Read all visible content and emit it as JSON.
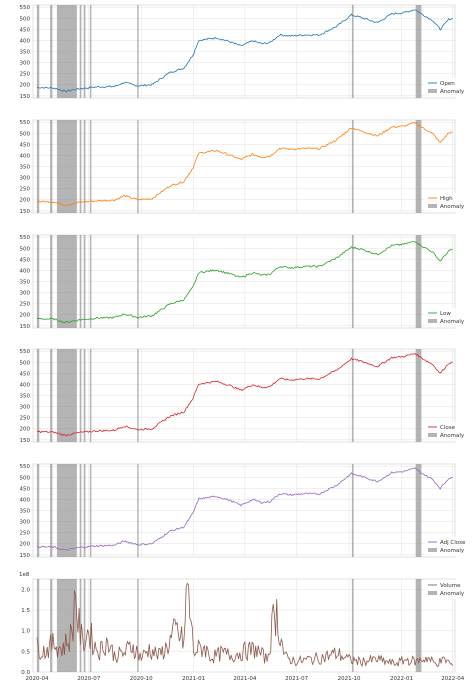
{
  "chart_data": {
    "type": "line",
    "shared_x": {
      "range": [
        "2020-03-25",
        "2022-04-05"
      ],
      "ticks": [
        "2020-04",
        "2020-07",
        "2020-10",
        "2021-01",
        "2021-04",
        "2021-07",
        "2021-10",
        "2022-01",
        "2022-04"
      ]
    },
    "anomaly_bands": [
      [
        "2020-04-01",
        "2020-04-05"
      ],
      [
        "2020-04-24",
        "2020-04-28"
      ],
      [
        "2020-05-06",
        "2020-06-10"
      ],
      [
        "2020-06-15",
        "2020-06-18"
      ],
      [
        "2020-06-22",
        "2020-06-25"
      ],
      [
        "2020-07-03",
        "2020-07-05"
      ],
      [
        "2020-09-24",
        "2020-09-26"
      ],
      [
        "2021-10-06",
        "2021-10-09"
      ],
      [
        "2022-01-26",
        "2022-02-05"
      ]
    ],
    "panels": [
      {
        "key": "open",
        "color": "#1f77b4",
        "ylim": [
          140,
          560
        ],
        "yticks": [
          150,
          200,
          250,
          300,
          350,
          400,
          450,
          500,
          550
        ],
        "legend": [
          "Open",
          "Anomaly"
        ],
        "series": [
          {
            "name": "Open",
            "x": [
              "2020-04-01",
              "2020-05-01",
              "2020-05-20",
              "2020-06-15",
              "2020-07-15",
              "2020-08-15",
              "2020-09-01",
              "2020-09-25",
              "2020-10-20",
              "2020-11-20",
              "2020-12-15",
              "2020-12-31",
              "2021-01-10",
              "2021-02-10",
              "2021-03-05",
              "2021-03-25",
              "2021-04-15",
              "2021-05-01",
              "2021-05-15",
              "2021-06-01",
              "2021-06-20",
              "2021-07-15",
              "2021-08-10",
              "2021-09-10",
              "2021-10-05",
              "2021-10-20",
              "2021-11-20",
              "2021-12-15",
              "2022-01-05",
              "2022-01-25",
              "2022-02-05",
              "2022-02-25",
              "2022-03-10",
              "2022-03-25",
              "2022-04-01"
            ],
            "y": [
              188,
              185,
              170,
              182,
              190,
              192,
              210,
              195,
              200,
              255,
              275,
              335,
              400,
              412,
              395,
              375,
              398,
              385,
              390,
              425,
              420,
              425,
              425,
              465,
              515,
              505,
              480,
              520,
              525,
              540,
              520,
              490,
              450,
              495,
              500
            ]
          }
        ]
      },
      {
        "key": "high",
        "color": "#ff7f0e",
        "ylim": [
          140,
          560
        ],
        "yticks": [
          150,
          200,
          250,
          300,
          350,
          400,
          450,
          500,
          550
        ],
        "legend": [
          "High",
          "Anomaly"
        ],
        "series": [
          {
            "name": "High",
            "x": [
              "2020-04-01",
              "2020-05-01",
              "2020-05-20",
              "2020-06-15",
              "2020-07-15",
              "2020-08-15",
              "2020-09-01",
              "2020-09-25",
              "2020-10-20",
              "2020-11-20",
              "2020-12-15",
              "2020-12-31",
              "2021-01-10",
              "2021-02-10",
              "2021-03-05",
              "2021-03-25",
              "2021-04-15",
              "2021-05-01",
              "2021-05-15",
              "2021-06-01",
              "2021-06-20",
              "2021-07-15",
              "2021-08-10",
              "2021-09-10",
              "2021-10-05",
              "2021-10-20",
              "2021-11-20",
              "2021-12-15",
              "2022-01-05",
              "2022-01-25",
              "2022-02-05",
              "2022-02-25",
              "2022-03-10",
              "2022-03-25",
              "2022-04-01"
            ],
            "y": [
              192,
              190,
              175,
              188,
              195,
              198,
              218,
              200,
              205,
              262,
              282,
              345,
              410,
              422,
              402,
              382,
              405,
              392,
              397,
              432,
              428,
              432,
              430,
              472,
              525,
              512,
              488,
              528,
              532,
              548,
              528,
              498,
              458,
              502,
              506
            ]
          }
        ]
      },
      {
        "key": "low",
        "color": "#2ca02c",
        "ylim": [
          140,
          560
        ],
        "yticks": [
          150,
          200,
          250,
          300,
          350,
          400,
          450,
          500,
          550
        ],
        "legend": [
          "Low",
          "Anomaly"
        ],
        "series": [
          {
            "name": "Low",
            "x": [
              "2020-04-01",
              "2020-05-01",
              "2020-05-20",
              "2020-06-15",
              "2020-07-15",
              "2020-08-15",
              "2020-09-01",
              "2020-09-25",
              "2020-10-20",
              "2020-11-20",
              "2020-12-15",
              "2020-12-31",
              "2021-01-10",
              "2021-02-10",
              "2021-03-05",
              "2021-03-25",
              "2021-04-15",
              "2021-05-01",
              "2021-05-15",
              "2021-06-01",
              "2021-06-20",
              "2021-07-15",
              "2021-08-10",
              "2021-09-10",
              "2021-10-05",
              "2021-10-20",
              "2021-11-20",
              "2021-12-15",
              "2022-01-05",
              "2022-01-25",
              "2022-02-05",
              "2022-02-25",
              "2022-03-10",
              "2022-03-25",
              "2022-04-01"
            ],
            "y": [
              182,
              180,
              165,
              177,
              185,
              187,
              203,
              188,
              195,
              248,
              268,
              325,
              390,
              402,
              385,
              368,
              390,
              378,
              383,
              418,
              412,
              418,
              418,
              458,
              505,
              498,
              472,
              512,
              518,
              532,
              512,
              482,
              442,
              488,
              494
            ]
          }
        ]
      },
      {
        "key": "close",
        "color": "#d62728",
        "ylim": [
          140,
          560
        ],
        "yticks": [
          150,
          200,
          250,
          300,
          350,
          400,
          450,
          500,
          550
        ],
        "legend": [
          "Close",
          "Anomaly"
        ],
        "series": [
          {
            "name": "Close",
            "x": [
              "2020-04-01",
              "2020-05-01",
              "2020-05-20",
              "2020-06-15",
              "2020-07-15",
              "2020-08-15",
              "2020-09-01",
              "2020-09-25",
              "2020-10-20",
              "2020-11-20",
              "2020-12-15",
              "2020-12-31",
              "2021-01-10",
              "2021-02-10",
              "2021-03-05",
              "2021-03-25",
              "2021-04-15",
              "2021-05-01",
              "2021-05-15",
              "2021-06-01",
              "2021-06-20",
              "2021-07-15",
              "2021-08-10",
              "2021-09-10",
              "2021-10-05",
              "2021-10-20",
              "2021-11-20",
              "2021-12-15",
              "2022-01-05",
              "2022-01-25",
              "2022-02-05",
              "2022-02-25",
              "2022-03-10",
              "2022-03-25",
              "2022-04-01"
            ],
            "y": [
              187,
              184,
              170,
              183,
              190,
              193,
              212,
              196,
              200,
              256,
              276,
              338,
              402,
              414,
              396,
              374,
              399,
              386,
              390,
              426,
              420,
              426,
              425,
              466,
              516,
              506,
              481,
              521,
              526,
              540,
              520,
              490,
              450,
              496,
              500
            ]
          }
        ]
      },
      {
        "key": "adj_close",
        "color": "#9467bd",
        "ylim": [
          140,
          560
        ],
        "yticks": [
          150,
          200,
          250,
          300,
          350,
          400,
          450,
          500,
          550
        ],
        "legend": [
          "Adj Close",
          "Anomaly"
        ],
        "series": [
          {
            "name": "Adj Close",
            "x": [
              "2020-04-01",
              "2020-05-01",
              "2020-05-20",
              "2020-06-15",
              "2020-07-15",
              "2020-08-15",
              "2020-09-01",
              "2020-09-25",
              "2020-10-20",
              "2020-11-20",
              "2020-12-15",
              "2020-12-31",
              "2021-01-10",
              "2021-02-10",
              "2021-03-05",
              "2021-03-25",
              "2021-04-15",
              "2021-05-01",
              "2021-05-15",
              "2021-06-01",
              "2021-06-20",
              "2021-07-15",
              "2021-08-10",
              "2021-09-10",
              "2021-10-05",
              "2021-10-20",
              "2021-11-20",
              "2021-12-15",
              "2022-01-05",
              "2022-01-25",
              "2022-02-05",
              "2022-02-25",
              "2022-03-10",
              "2022-03-25",
              "2022-04-01"
            ],
            "y": [
              187,
              184,
              170,
              183,
              190,
              193,
              212,
              196,
              200,
              256,
              276,
              338,
              402,
              414,
              396,
              374,
              399,
              386,
              390,
              426,
              420,
              426,
              425,
              466,
              516,
              506,
              481,
              521,
              526,
              540,
              520,
              490,
              450,
              496,
              500
            ]
          }
        ]
      },
      {
        "key": "volume",
        "color": "#8c564b",
        "ylim": [
          0,
          2.25
        ],
        "yticks": [
          "0.0",
          "0.5",
          "1.0",
          "1.5",
          "2.0"
        ],
        "ytick_values": [
          0,
          0.5,
          1.0,
          1.5,
          2.0
        ],
        "y_multiplier": "1e8",
        "legend": [
          "Volume",
          "Anomaly"
        ],
        "series": [
          {
            "name": "Volume",
            "x": [
              "2020-04-01",
              "2020-04-15",
              "2020-05-01",
              "2020-05-15",
              "2020-06-01",
              "2020-06-08",
              "2020-06-12",
              "2020-06-20",
              "2020-07-01",
              "2020-07-10",
              "2020-07-20",
              "2020-08-01",
              "2020-08-15",
              "2020-09-01",
              "2020-09-15",
              "2020-10-01",
              "2020-10-15",
              "2020-11-01",
              "2020-11-15",
              "2020-12-01",
              "2020-12-15",
              "2020-12-21",
              "2021-01-01",
              "2021-01-20",
              "2021-02-01",
              "2021-02-20",
              "2021-03-10",
              "2021-04-01",
              "2021-04-20",
              "2021-05-10",
              "2021-05-25",
              "2021-06-10",
              "2021-07-01",
              "2021-07-20",
              "2021-08-15",
              "2021-09-10",
              "2021-10-01",
              "2021-10-20",
              "2021-11-20",
              "2021-12-20",
              "2022-01-10",
              "2022-01-27",
              "2022-02-15",
              "2022-03-01",
              "2022-03-20",
              "2022-04-01"
            ],
            "y": [
              0.6,
              0.5,
              0.7,
              0.55,
              0.9,
              2.02,
              1.2,
              0.7,
              1.0,
              0.65,
              0.5,
              0.75,
              0.4,
              0.45,
              0.65,
              0.35,
              0.55,
              0.4,
              0.6,
              1.0,
              0.7,
              2.15,
              0.5,
              0.6,
              0.35,
              0.45,
              0.4,
              0.5,
              0.55,
              0.3,
              1.55,
              0.35,
              0.25,
              0.3,
              0.35,
              0.45,
              0.3,
              0.25,
              0.3,
              0.2,
              0.3,
              0.25,
              0.35,
              0.2,
              0.3,
              0.15
            ]
          }
        ]
      }
    ]
  }
}
